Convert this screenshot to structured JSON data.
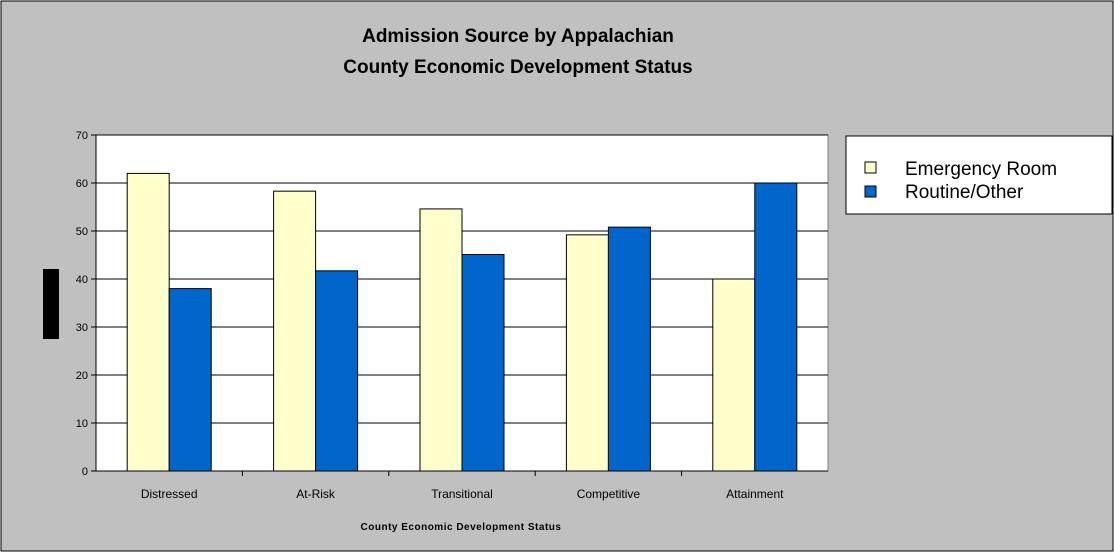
{
  "chart_data": {
    "type": "bar",
    "title_lines": [
      "Admission Source by Appalachian",
      "County Economic Development Status"
    ],
    "xlabel": "County Economic Development Status",
    "ylabel": "",
    "categories": [
      "Distressed",
      "At-Risk",
      "Transitional",
      "Competitive",
      "Attainment"
    ],
    "series": [
      {
        "name": "Emergency Room",
        "values": [
          62,
          58.3,
          54.6,
          49.2,
          40
        ],
        "color": "#ffffcc"
      },
      {
        "name": "Routine/Other",
        "values": [
          38,
          41.7,
          45.1,
          50.8,
          60
        ],
        "color": "#0066cc"
      }
    ],
    "ylim": [
      0,
      70
    ],
    "yticks": [
      0,
      10,
      20,
      30,
      40,
      50,
      60,
      70
    ],
    "grid": true,
    "legend_position": "right",
    "colors": {
      "chart_area_background": "#c0c0c0",
      "plot_area_background": "#ffffff",
      "gridline": "#000000",
      "bar_outline": "#000000",
      "ylabel_box": "#000000"
    }
  }
}
